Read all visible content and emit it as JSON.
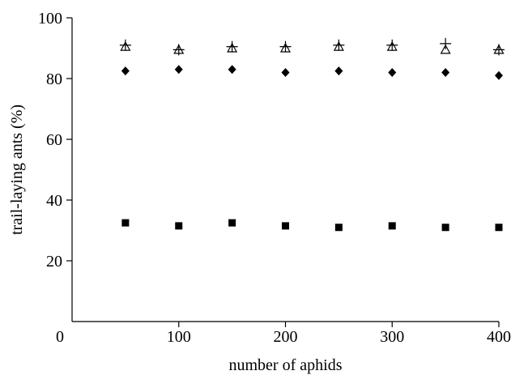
{
  "chart_data": {
    "type": "scatter",
    "title": "",
    "xlabel": "number of aphids",
    "ylabel": "trail-laying ants (%)",
    "xlim": [
      0,
      400
    ],
    "ylim": [
      0,
      100
    ],
    "x_ticks": [
      0,
      100,
      200,
      300,
      400
    ],
    "y_ticks": [
      20,
      40,
      60,
      80,
      100
    ],
    "x_tick_labels": [
      "0",
      "100",
      "200",
      "300",
      "400"
    ],
    "y_tick_labels": [
      "20",
      "40",
      "60",
      "80",
      "100"
    ],
    "grid": false,
    "legend": "none",
    "series": [
      {
        "marker": "plus",
        "color": "#000000",
        "x": [
          50,
          100,
          150,
          200,
          250,
          300,
          350,
          400
        ],
        "y": [
          91,
          89.5,
          90.5,
          90.5,
          91,
          91,
          91.5,
          89.5
        ]
      },
      {
        "marker": "triangle-open",
        "color": "#000000",
        "x": [
          50,
          100,
          150,
          200,
          250,
          300,
          350,
          400
        ],
        "y": [
          90.5,
          89.5,
          90,
          90,
          90.5,
          90.5,
          89.5,
          89.5
        ]
      },
      {
        "marker": "diamond",
        "color": "#000000",
        "x": [
          50,
          100,
          150,
          200,
          250,
          300,
          350,
          400
        ],
        "y": [
          82.5,
          83,
          83,
          82,
          82.5,
          82,
          82,
          81
        ]
      },
      {
        "marker": "square",
        "color": "#000000",
        "x": [
          50,
          100,
          150,
          200,
          250,
          300,
          350,
          400
        ],
        "y": [
          32.5,
          31.5,
          32.5,
          31.5,
          31,
          31.5,
          31,
          31
        ]
      }
    ]
  }
}
